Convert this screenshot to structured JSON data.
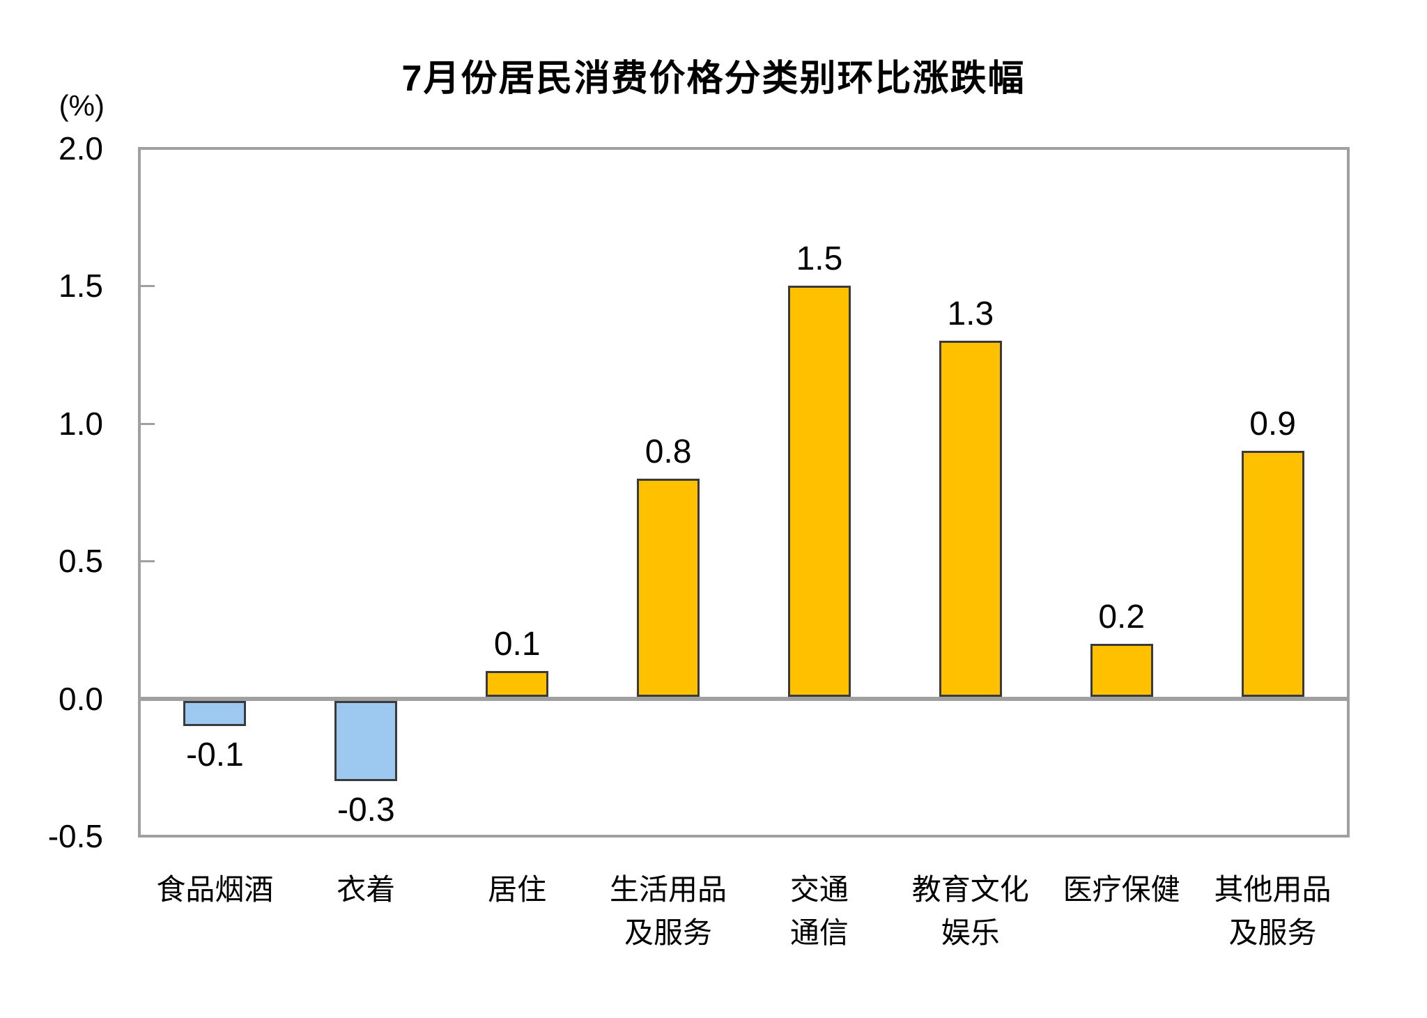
{
  "page": {
    "background": "#ffffff"
  },
  "chart_data": {
    "type": "bar",
    "title": "7月份居民消费价格分类别环比涨跌幅",
    "unit_label": "(%)",
    "categories": [
      "食品烟酒",
      "衣着",
      "居住",
      "生活用品及服务",
      "交通通信",
      "教育文化娱乐",
      "医疗保健",
      "其他用品及服务"
    ],
    "category_lines": [
      [
        "食品烟酒"
      ],
      [
        "衣着"
      ],
      [
        "居住"
      ],
      [
        "生活用品",
        "及服务"
      ],
      [
        "交通",
        "通信"
      ],
      [
        "教育文化",
        "娱乐"
      ],
      [
        "医疗保健"
      ],
      [
        "其他用品",
        "及服务"
      ]
    ],
    "values": [
      -0.1,
      -0.3,
      0.1,
      0.8,
      1.5,
      1.3,
      0.2,
      0.9
    ],
    "value_labels": [
      "-0.1",
      "-0.3",
      "0.1",
      "0.8",
      "1.5",
      "1.3",
      "0.2",
      "0.9"
    ],
    "ylim": [
      -0.5,
      2.0
    ],
    "yticks": [
      2.0,
      1.5,
      1.0,
      0.5,
      0.0,
      -0.5
    ],
    "ytick_labels": [
      "2.0",
      "1.5",
      "1.0",
      "0.5",
      "0.0",
      "-0.5"
    ],
    "xlabel": "",
    "ylabel": "(%)",
    "grid": false,
    "legend": false,
    "colors": {
      "positive_bar": "#FFC000",
      "negative_bar": "#9DC9F0",
      "bar_border": "#3A3A3A",
      "axis_gray": "#A0A0A0",
      "text": "#000000"
    }
  }
}
